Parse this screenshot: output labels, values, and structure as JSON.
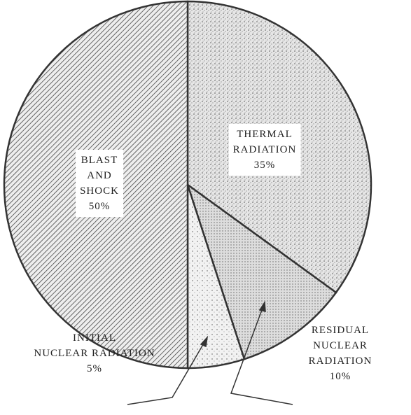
{
  "chart_data": {
    "type": "pie",
    "categories": [
      "THERMAL\nRADIATION",
      "RESIDUAL\nNUCLEAR RADIATION",
      "INITIAL\nNUCLEAR RADIATION",
      "BLAST\nAND\nSHOCK"
    ],
    "values": [
      35,
      10,
      5,
      50
    ],
    "value_labels": [
      "35%",
      "10%",
      "5%",
      "50%"
    ]
  }
}
